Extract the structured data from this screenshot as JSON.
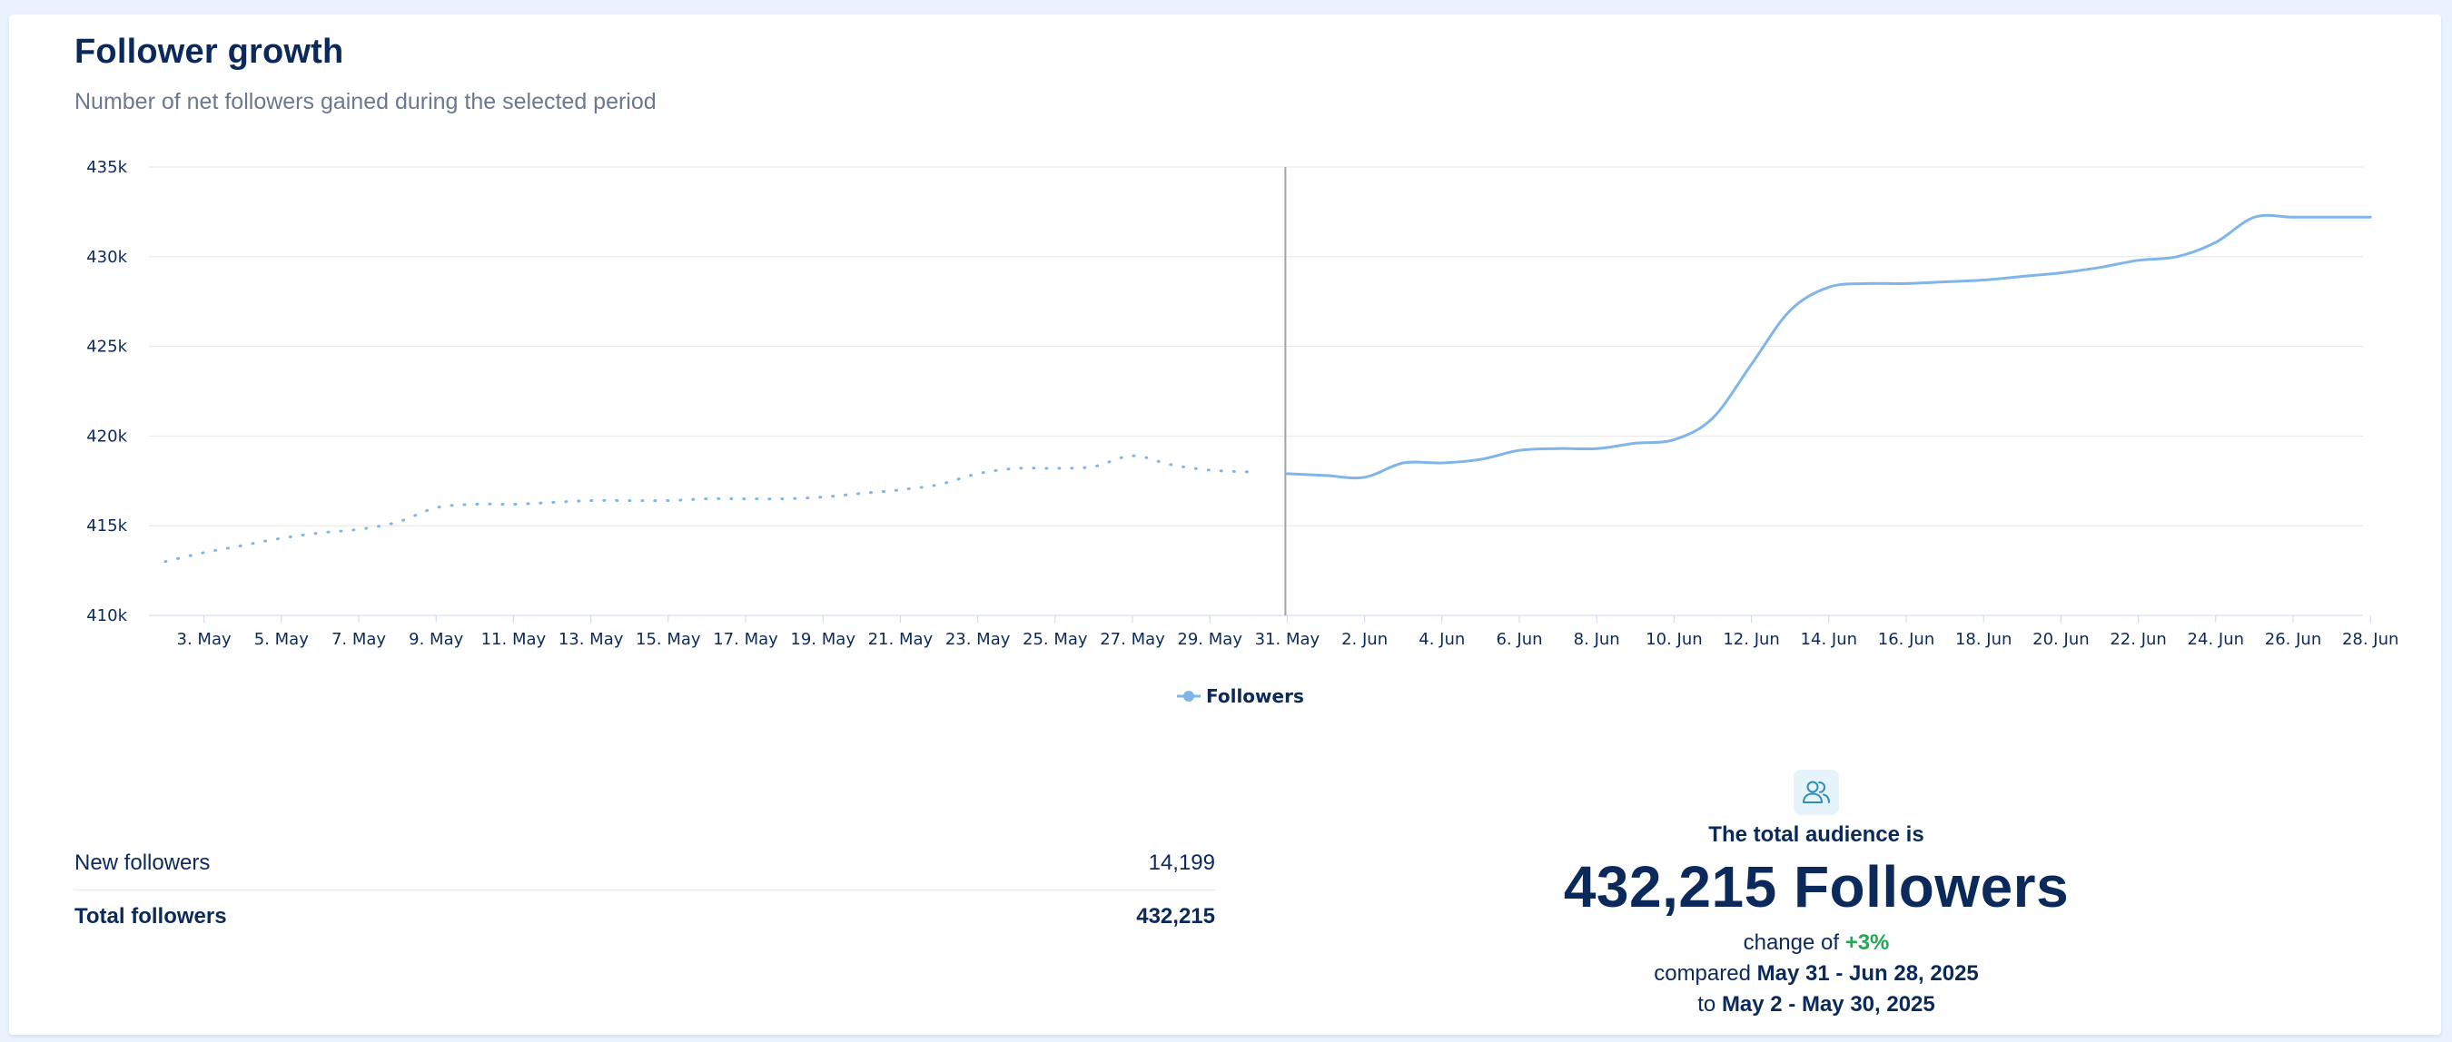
{
  "header": {
    "title": "Follower growth",
    "subtitle": "Number of net followers gained during the selected period"
  },
  "chart_data": {
    "type": "line",
    "title": "Follower growth",
    "xlabel": "",
    "ylabel": "",
    "ylim": [
      410000,
      435000
    ],
    "y_ticks": [
      "410k",
      "415k",
      "420k",
      "425k",
      "430k",
      "435k"
    ],
    "x_ticks": [
      "3. May",
      "5. May",
      "7. May",
      "9. May",
      "11. May",
      "13. May",
      "15. May",
      "17. May",
      "19. May",
      "21. May",
      "23. May",
      "25. May",
      "27. May",
      "29. May",
      "31. May",
      "2. Jun",
      "4. Jun",
      "6. Jun",
      "8. Jun",
      "10. Jun",
      "12. Jun",
      "14. Jun",
      "16. Jun",
      "18. Jun",
      "20. Jun",
      "22. Jun",
      "24. Jun",
      "26. Jun",
      "28. Jun"
    ],
    "grid": true,
    "legend": "bottom-center",
    "divider_at": "31. May",
    "series": [
      {
        "name": "Followers",
        "style": "dotted",
        "period": "May 2 - May 30, 2025",
        "x": [
          "2. May",
          "3. May",
          "4. May",
          "5. May",
          "6. May",
          "7. May",
          "8. May",
          "9. May",
          "10. May",
          "11. May",
          "12. May",
          "13. May",
          "14. May",
          "15. May",
          "16. May",
          "17. May",
          "18. May",
          "19. May",
          "20. May",
          "21. May",
          "22. May",
          "23. May",
          "24. May",
          "25. May",
          "26. May",
          "27. May",
          "28. May",
          "29. May",
          "30. May"
        ],
        "values": [
          413000,
          413500,
          413900,
          414300,
          414600,
          414800,
          415200,
          416000,
          416200,
          416200,
          416300,
          416400,
          416400,
          416400,
          416500,
          416500,
          416500,
          416600,
          416800,
          417000,
          417300,
          417900,
          418200,
          418200,
          418300,
          418900,
          418400,
          418100,
          418000
        ]
      },
      {
        "name": "Followers",
        "style": "solid",
        "period": "May 31 - Jun 28, 2025",
        "x": [
          "31. May",
          "1. Jun",
          "2. Jun",
          "3. Jun",
          "4. Jun",
          "5. Jun",
          "6. Jun",
          "7. Jun",
          "8. Jun",
          "9. Jun",
          "10. Jun",
          "11. Jun",
          "12. Jun",
          "13. Jun",
          "14. Jun",
          "15. Jun",
          "16. Jun",
          "17. Jun",
          "18. Jun",
          "19. Jun",
          "20. Jun",
          "21. Jun",
          "22. Jun",
          "23. Jun",
          "24. Jun",
          "25. Jun",
          "26. Jun",
          "27. Jun",
          "28. Jun"
        ],
        "values": [
          417900,
          417800,
          417700,
          418500,
          418500,
          418700,
          419200,
          419300,
          419300,
          419600,
          419800,
          421000,
          424000,
          427000,
          428300,
          428500,
          428500,
          428600,
          428700,
          428900,
          429100,
          429400,
          429800,
          430000,
          430800,
          432200,
          432200,
          432200,
          432200
        ]
      }
    ]
  },
  "legend": {
    "label": "Followers"
  },
  "summary": {
    "new_followers_label": "New followers",
    "new_followers_value": "14,199",
    "total_followers_label": "Total followers",
    "total_followers_value": "432,215"
  },
  "audience": {
    "icon": "users-icon",
    "heading": "The total audience is",
    "big_value": "432,215 Followers",
    "change_prefix": "change of",
    "change_value": "+3%",
    "compared_prefix": "compared",
    "compared_period": "May 31 - Jun 28, 2025",
    "to_prefix": "to",
    "to_period": "May 2 - May 30, 2025"
  },
  "colors": {
    "line": "#7fb5e9",
    "text": "#0b2a5b",
    "positive": "#1faa54",
    "divider": "#a0a4aa"
  }
}
